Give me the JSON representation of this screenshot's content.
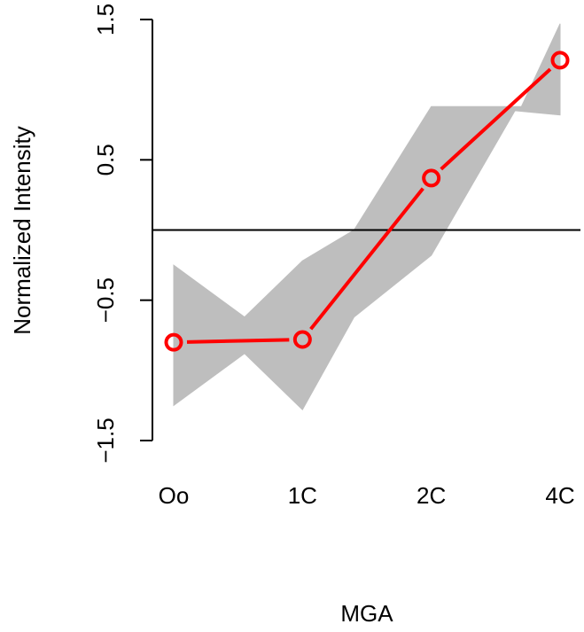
{
  "chart_data": {
    "type": "line",
    "title": "",
    "xlabel": "MGA",
    "ylabel": "Normalized Intensity",
    "categories": [
      "Oo",
      "1C",
      "2C",
      "4C"
    ],
    "ylim": [
      -1.5,
      1.5
    ],
    "yticks": [
      -1.5,
      -0.5,
      0.5,
      1.5
    ],
    "ytick_labels": [
      "−1.5",
      "−0.5",
      "0.5",
      "1.5"
    ],
    "reference_line_y": 0,
    "background_band": {
      "color": "#bebebe",
      "upper": [
        [
          0,
          -0.25
        ],
        [
          0.55,
          -0.62
        ],
        [
          1,
          -0.22
        ],
        [
          1.4,
          0.0
        ],
        [
          2,
          0.88
        ],
        [
          2.7,
          0.88
        ],
        [
          3,
          1.47
        ]
      ],
      "lower": [
        [
          3,
          0.82
        ],
        [
          2.65,
          0.85
        ],
        [
          2,
          -0.18
        ],
        [
          1.4,
          -0.62
        ],
        [
          1,
          -1.28
        ],
        [
          0.55,
          -0.88
        ],
        [
          0,
          -1.25
        ]
      ]
    },
    "series": [
      {
        "values": [
          -0.8,
          -0.78,
          0.37,
          1.21
        ],
        "color": "#ff0000"
      }
    ]
  }
}
